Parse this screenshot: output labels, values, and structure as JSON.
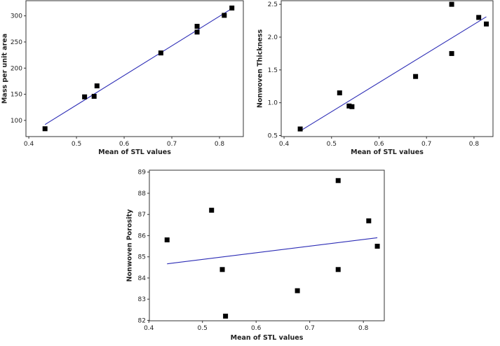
{
  "chart_data": [
    {
      "type": "scatter",
      "xlabel": "Mean of STL values",
      "ylabel": "Mass per unit area",
      "xlim": [
        0.394,
        0.85
      ],
      "ylim": [
        69,
        329
      ],
      "xticks": [
        "0.4",
        "0.5",
        "0.6",
        "0.7",
        "0.8"
      ],
      "yticks": [
        "100",
        "150",
        "200",
        "250",
        "300"
      ],
      "x": [
        0.434,
        0.517,
        0.537,
        0.543,
        0.677,
        0.753,
        0.753,
        0.81,
        0.826
      ],
      "y": [
        84,
        145,
        146,
        166,
        229,
        280,
        269,
        301,
        315
      ],
      "fit_line": {
        "x": [
          0.434,
          0.826
        ],
        "y": [
          92,
          314
        ]
      },
      "marker_color": "#000000",
      "line_color": "#2b2bb5",
      "grid": false
    },
    {
      "type": "scatter",
      "xlabel": "Mean of STL values",
      "ylabel": "Nonwoven Thickness",
      "xlim": [
        0.394,
        0.84
      ],
      "ylim": [
        0.484,
        2.555
      ],
      "xticks": [
        "0.4",
        "0.5",
        "0.6",
        "0.7",
        "0.8"
      ],
      "yticks": [
        "0.5",
        "1.0",
        "1.5",
        "2.0",
        "2.5"
      ],
      "x": [
        0.434,
        0.517,
        0.537,
        0.543,
        0.677,
        0.753,
        0.753,
        0.81,
        0.826
      ],
      "y": [
        0.6,
        1.15,
        0.95,
        0.94,
        1.4,
        2.5,
        1.75,
        2.3,
        2.2
      ],
      "fit_line": {
        "x": [
          0.434,
          0.826
        ],
        "y": [
          0.57,
          2.31
        ]
      },
      "marker_color": "#000000",
      "line_color": "#2b2bb5",
      "grid": false
    },
    {
      "type": "scatter",
      "xlabel": "Mean of STL values",
      "ylabel": "Nonwoven Porosity",
      "xlim": [
        0.401,
        0.839
      ],
      "ylim": [
        81.98,
        89.09
      ],
      "xticks": [
        "0.4",
        "0.5",
        "0.6",
        "0.7",
        "0.8"
      ],
      "yticks": [
        "82",
        "83",
        "84",
        "85",
        "86",
        "87",
        "88",
        "89"
      ],
      "x": [
        0.434,
        0.517,
        0.537,
        0.543,
        0.677,
        0.753,
        0.753,
        0.81,
        0.826
      ],
      "y": [
        85.8,
        87.2,
        84.4,
        82.2,
        83.4,
        88.6,
        84.4,
        86.7,
        85.5
      ],
      "fit_line": {
        "x": [
          0.434,
          0.826
        ],
        "y": [
          84.67,
          85.9
        ]
      },
      "marker_color": "#000000",
      "line_color": "#2b2bb5",
      "grid": false
    }
  ]
}
